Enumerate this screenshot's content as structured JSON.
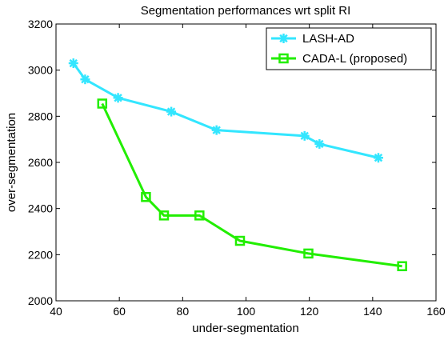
{
  "chart_data": {
    "type": "line",
    "title": "Segmentation performances wrt split RI",
    "xlabel": "under-segmentation",
    "ylabel": "over-segmentation",
    "xlim": [
      40,
      160
    ],
    "ylim": [
      2000,
      3200
    ],
    "xticks": [
      40,
      60,
      80,
      100,
      120,
      140,
      160
    ],
    "yticks": [
      2000,
      2200,
      2400,
      2600,
      2800,
      3000,
      3200
    ],
    "grid": false,
    "legend_position": "top-right",
    "series": [
      {
        "name": "LASH-AD",
        "color": "#33e6ff",
        "marker": "asterisk",
        "x": [
          45.5,
          49.2,
          59.6,
          76.4,
          90.7,
          118.5,
          123.2,
          141.8
        ],
        "y": [
          3030,
          2960,
          2880,
          2820,
          2740,
          2715,
          2680,
          2620
        ]
      },
      {
        "name": "CADA-L (proposed)",
        "color": "#22ee00",
        "marker": "square",
        "x": [
          54.6,
          68.4,
          74.1,
          85.3,
          98.1,
          119.7,
          149.3
        ],
        "y": [
          2855,
          2450,
          2370,
          2370,
          2260,
          2205,
          2150
        ]
      }
    ]
  }
}
